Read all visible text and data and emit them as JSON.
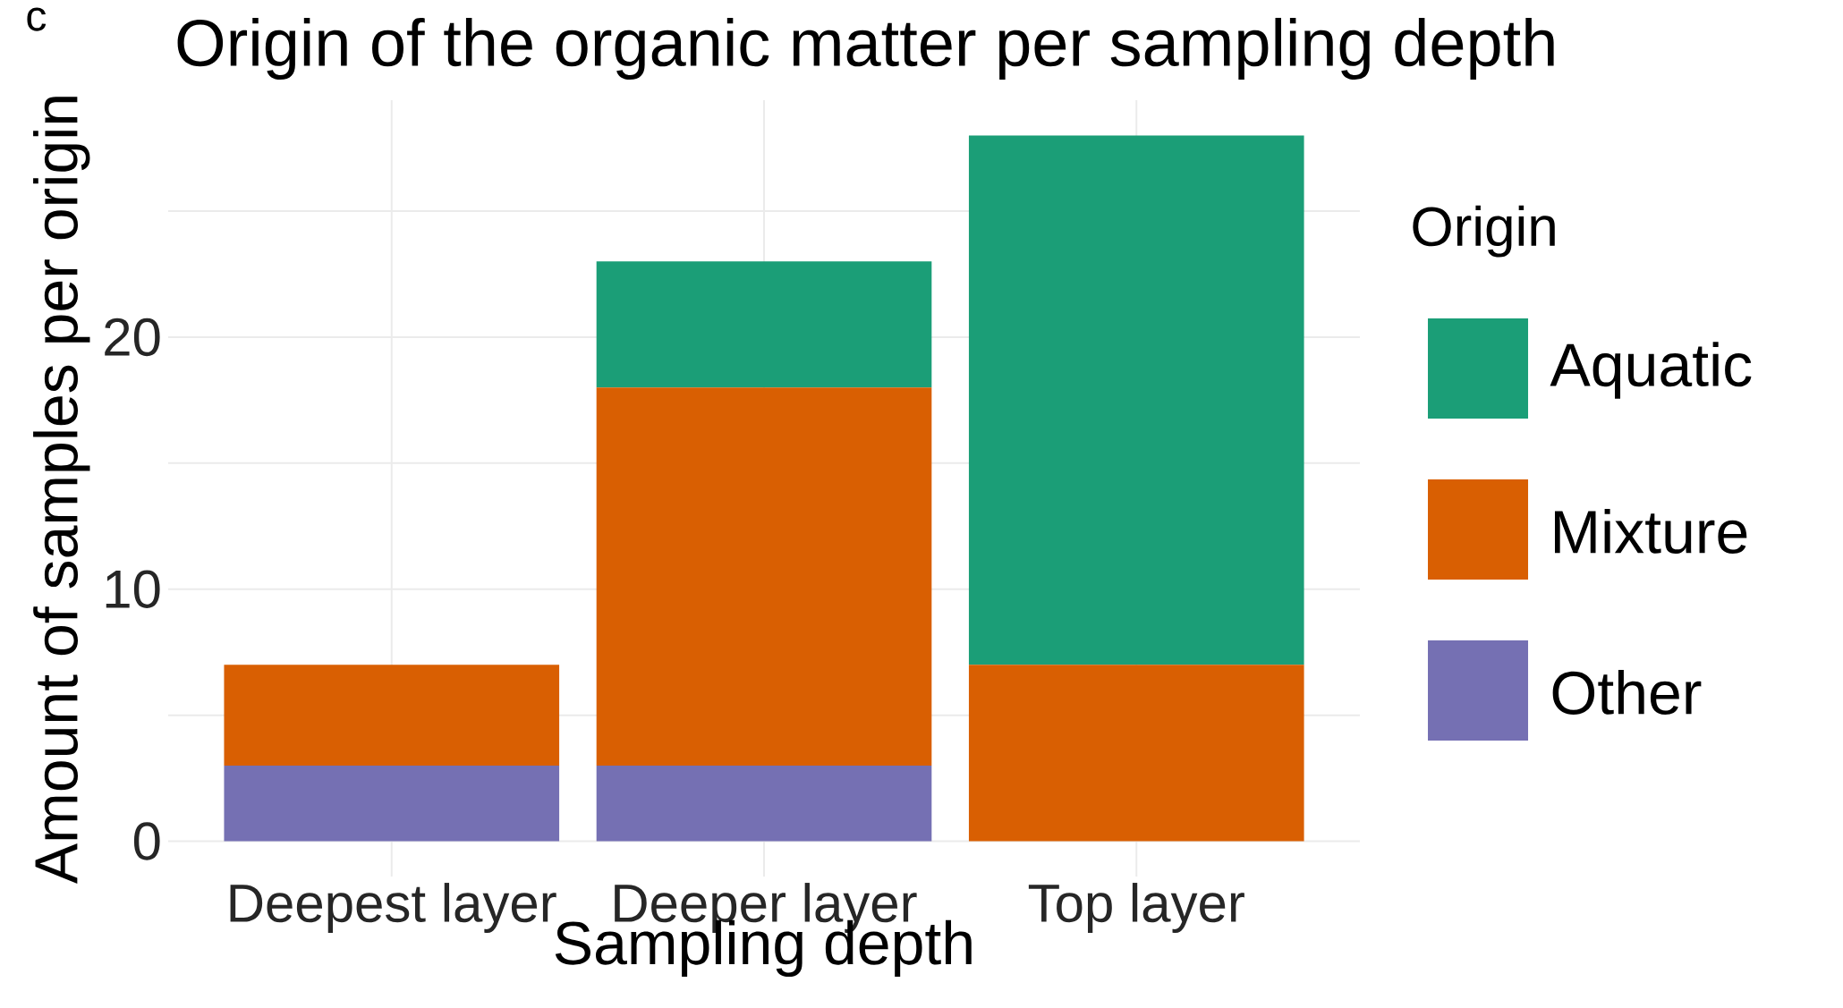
{
  "chart_data": {
    "type": "bar",
    "title": "Origin of the organic matter per sampling depth",
    "xlabel": "Sampling depth",
    "ylabel": "Amount of samples per origin",
    "legend_title": "Origin",
    "annotations": [
      "c"
    ],
    "categories": [
      "Deepest layer",
      "Deeper layer",
      "Top layer"
    ],
    "stacked": true,
    "series": [
      {
        "name": "Other",
        "color": "#7570b3",
        "values": [
          3,
          3,
          0
        ]
      },
      {
        "name": "Mixture",
        "color": "#d95f02",
        "values": [
          4,
          15,
          7
        ]
      },
      {
        "name": "Aquatic",
        "color": "#1b9e77",
        "values": [
          0,
          5,
          21
        ]
      }
    ],
    "ylim": [
      -1.4,
      29.4
    ],
    "yticks": [
      0,
      {
        "value": 5,
        "label": null
      },
      10,
      {
        "value": 15,
        "label": null
      },
      20,
      {
        "value": 25,
        "label": null
      }
    ],
    "grid": true,
    "legend": "right"
  }
}
